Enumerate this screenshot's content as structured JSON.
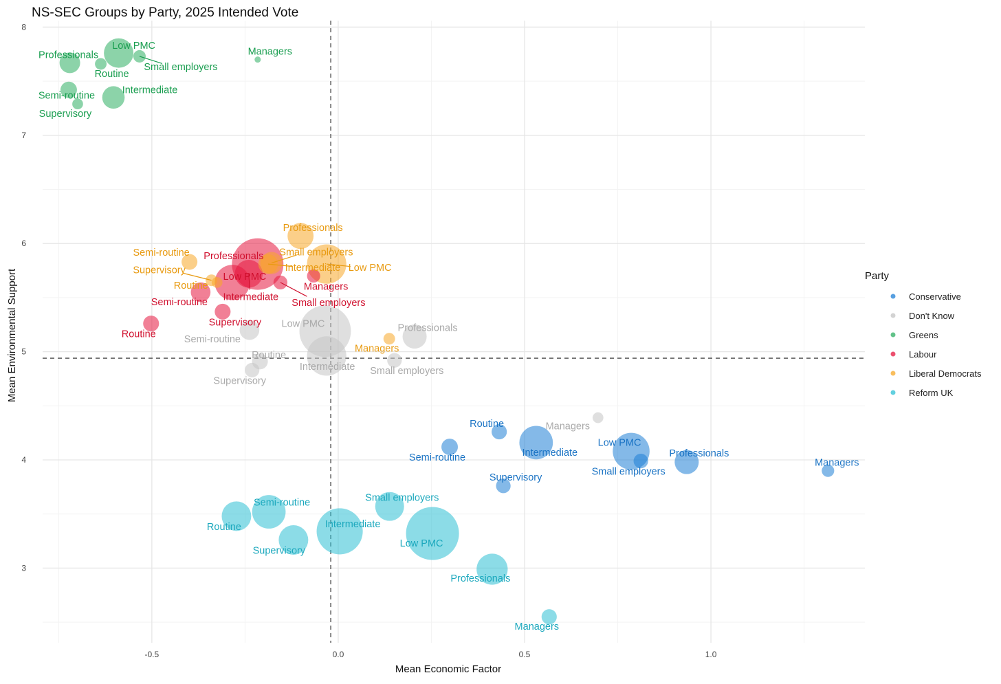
{
  "chart_data": {
    "type": "scatter",
    "title": "NS-SEC Groups by Party, 2025 Intended Vote",
    "xlabel": "Mean Economic Factor",
    "ylabel": "Mean Environmental Support",
    "xlim": [
      -0.793,
      1.413
    ],
    "ylim": [
      2.31,
      8.06
    ],
    "x_ticks": [
      {
        "v": -0.5,
        "label": "-0.5"
      },
      {
        "v": 0.0,
        "label": "0.0"
      },
      {
        "v": 0.5,
        "label": "0.5"
      },
      {
        "v": 1.0,
        "label": "1.0"
      }
    ],
    "y_ticks": [
      {
        "v": 3,
        "label": "3"
      },
      {
        "v": 4,
        "label": "4"
      },
      {
        "v": 5,
        "label": "5"
      },
      {
        "v": 6,
        "label": "6"
      },
      {
        "v": 7,
        "label": "7"
      },
      {
        "v": 8,
        "label": "8"
      }
    ],
    "grid": true,
    "reference_lines": {
      "x": -0.02,
      "y": 4.94
    },
    "legend": {
      "title": "Party",
      "placement": "right"
    },
    "size_note": "relative group size",
    "series": [
      {
        "name": "Conservative",
        "color": "#1f7fd6",
        "label_color": "#1a73c4",
        "points": [
          {
            "label": "Routine",
            "x": 0.432,
            "y": 4.26,
            "n": 12
          },
          {
            "label": "Semi-routine",
            "x": 0.299,
            "y": 4.12,
            "n": 14
          },
          {
            "label": "Intermediate",
            "x": 0.531,
            "y": 4.16,
            "n": 58
          },
          {
            "label": "Low PMC",
            "x": 0.786,
            "y": 4.08,
            "n": 70
          },
          {
            "label": "Small employers",
            "x": 0.812,
            "y": 3.99,
            "n": 11
          },
          {
            "label": "Professionals",
            "x": 0.935,
            "y": 3.98,
            "n": 30
          },
          {
            "label": "Managers",
            "x": 1.314,
            "y": 3.9,
            "n": 8
          },
          {
            "label": "Supervisory",
            "x": 0.443,
            "y": 3.76,
            "n": 11
          }
        ]
      },
      {
        "name": "Don't Know",
        "color": "#c4c4c4",
        "label_color": "#aaaaaa",
        "points": [
          {
            "label": "Low PMC",
            "x": -0.035,
            "y": 5.19,
            "n": 137
          },
          {
            "label": "Intermediate",
            "x": -0.031,
            "y": 4.96,
            "n": 80
          },
          {
            "label": "Professionals",
            "x": 0.205,
            "y": 5.14,
            "n": 30
          },
          {
            "label": "Semi-routine",
            "x": -0.238,
            "y": 5.2,
            "n": 20
          },
          {
            "label": "Routine",
            "x": -0.21,
            "y": 4.91,
            "n": 13
          },
          {
            "label": "Supervisory",
            "x": -0.231,
            "y": 4.83,
            "n": 11
          },
          {
            "label": "Small employers",
            "x": 0.151,
            "y": 4.92,
            "n": 11
          },
          {
            "label": "Managers",
            "x": 0.697,
            "y": 4.39,
            "n": 6
          }
        ]
      },
      {
        "name": "Greens",
        "color": "#2eae62",
        "label_color": "#1a9e50",
        "points": [
          {
            "label": "Professionals",
            "x": -0.72,
            "y": 7.67,
            "n": 22
          },
          {
            "label": "Low PMC",
            "x": -0.589,
            "y": 7.76,
            "n": 45
          },
          {
            "label": "Routine",
            "x": -0.637,
            "y": 7.66,
            "n": 7
          },
          {
            "label": "Small employers",
            "x": -0.533,
            "y": 7.73,
            "n": 8
          },
          {
            "label": "Managers",
            "x": -0.216,
            "y": 7.7,
            "n": 2
          },
          {
            "label": "Semi-routine",
            "x": -0.723,
            "y": 7.42,
            "n": 14
          },
          {
            "label": "Intermediate",
            "x": -0.603,
            "y": 7.35,
            "n": 26
          },
          {
            "label": "Supervisory",
            "x": -0.699,
            "y": 7.29,
            "n": 6
          }
        ]
      },
      {
        "name": "Labour",
        "color": "#e5173f",
        "label_color": "#d0102e",
        "points": [
          {
            "label": "Professionals",
            "x": -0.216,
            "y": 5.81,
            "n": 137
          },
          {
            "label": "Low PMC",
            "x": -0.284,
            "y": 5.64,
            "n": 64
          },
          {
            "label": "Intermediate",
            "x": -0.24,
            "y": 5.72,
            "n": 40
          },
          {
            "label": "Managers",
            "x": -0.066,
            "y": 5.7,
            "n": 9
          },
          {
            "label": "Small employers",
            "x": -0.155,
            "y": 5.64,
            "n": 10
          },
          {
            "label": "Semi-routine",
            "x": -0.369,
            "y": 5.55,
            "n": 20
          },
          {
            "label": "Supervisory",
            "x": -0.31,
            "y": 5.37,
            "n": 13
          },
          {
            "label": "Routine",
            "x": -0.502,
            "y": 5.26,
            "n": 13
          }
        ]
      },
      {
        "name": "Liberal Democrats",
        "color": "#f7a828",
        "label_color": "#e89a10",
        "points": [
          {
            "label": "Professionals",
            "x": -0.101,
            "y": 6.07,
            "n": 35
          },
          {
            "label": "Semi-routine",
            "x": -0.399,
            "y": 5.83,
            "n": 13
          },
          {
            "label": "Supervisory",
            "x": -0.34,
            "y": 5.66,
            "n": 7
          },
          {
            "label": "Routine",
            "x": -0.325,
            "y": 5.64,
            "n": 6
          },
          {
            "label": "Small employers",
            "x": -0.179,
            "y": 5.82,
            "n": 25
          },
          {
            "label": "Intermediate",
            "x": -0.188,
            "y": 5.81,
            "n": 20
          },
          {
            "label": "Low PMC",
            "x": -0.031,
            "y": 5.81,
            "n": 80
          },
          {
            "label": "Managers",
            "x": 0.137,
            "y": 5.12,
            "n": 7
          }
        ]
      },
      {
        "name": "Reform UK",
        "color": "#2ec0d4",
        "label_color": "#1ba8bd",
        "points": [
          {
            "label": "Routine",
            "x": -0.273,
            "y": 3.48,
            "n": 45
          },
          {
            "label": "Semi-routine",
            "x": -0.186,
            "y": 3.52,
            "n": 58
          },
          {
            "label": "Supervisory",
            "x": -0.12,
            "y": 3.26,
            "n": 45
          },
          {
            "label": "Intermediate",
            "x": 0.004,
            "y": 3.34,
            "n": 110
          },
          {
            "label": "Small employers",
            "x": 0.138,
            "y": 3.57,
            "n": 43
          },
          {
            "label": "Low PMC",
            "x": 0.253,
            "y": 3.32,
            "n": 145
          },
          {
            "label": "Professionals",
            "x": 0.413,
            "y": 2.99,
            "n": 50
          },
          {
            "label": "Managers",
            "x": 0.566,
            "y": 2.55,
            "n": 12
          }
        ]
      }
    ]
  }
}
